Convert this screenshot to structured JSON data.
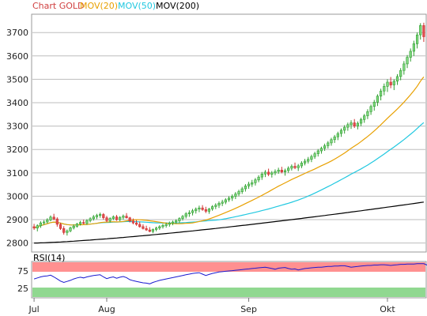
{
  "chart_data": {
    "type": "candlestick",
    "legend": [
      {
        "label": "Chart GOLD",
        "color": "#d04040"
      },
      {
        "label": "MOV(20)",
        "color": "#e8a000"
      },
      {
        "label": "MOV(50)",
        "color": "#20c8e0"
      },
      {
        "label": "MOV(200)",
        "color": "#000000"
      }
    ],
    "yticks": [
      2800,
      2900,
      3000,
      3100,
      3200,
      3300,
      3400,
      3500,
      3600,
      3700
    ],
    "ylim": [
      2765,
      3775
    ],
    "grid": true,
    "month_labels": [
      {
        "label": "Jul",
        "index": 0
      },
      {
        "label": "Aug",
        "index": 22
      },
      {
        "label": "Sep",
        "index": 65
      },
      {
        "label": "Okt",
        "index": 107
      }
    ],
    "candles_ohlc": [
      [
        2870,
        2882,
        2856,
        2864
      ],
      [
        2864,
        2880,
        2850,
        2874
      ],
      [
        2874,
        2893,
        2865,
        2886
      ],
      [
        2886,
        2898,
        2878,
        2890
      ],
      [
        2890,
        2906,
        2884,
        2899
      ],
      [
        2899,
        2918,
        2893,
        2911
      ],
      [
        2911,
        2925,
        2898,
        2903
      ],
      [
        2903,
        2910,
        2870,
        2880
      ],
      [
        2880,
        2886,
        2856,
        2862
      ],
      [
        2862,
        2872,
        2836,
        2845
      ],
      [
        2845,
        2858,
        2832,
        2852
      ],
      [
        2852,
        2870,
        2846,
        2865
      ],
      [
        2865,
        2880,
        2858,
        2872
      ],
      [
        2872,
        2886,
        2866,
        2882
      ],
      [
        2882,
        2895,
        2875,
        2888
      ],
      [
        2888,
        2900,
        2880,
        2885
      ],
      [
        2885,
        2902,
        2878,
        2896
      ],
      [
        2896,
        2910,
        2888,
        2904
      ],
      [
        2904,
        2920,
        2896,
        2912
      ],
      [
        2912,
        2925,
        2902,
        2918
      ],
      [
        2918,
        2930,
        2908,
        2922
      ],
      [
        2922,
        2928,
        2900,
        2908
      ],
      [
        2908,
        2916,
        2890,
        2896
      ],
      [
        2896,
        2910,
        2888,
        2905
      ],
      [
        2905,
        2918,
        2898,
        2912
      ],
      [
        2912,
        2920,
        2895,
        2900
      ],
      [
        2900,
        2915,
        2893,
        2910
      ],
      [
        2910,
        2922,
        2900,
        2915
      ],
      [
        2915,
        2928,
        2905,
        2908
      ],
      [
        2908,
        2912,
        2888,
        2894
      ],
      [
        2894,
        2905,
        2880,
        2886
      ],
      [
        2886,
        2898,
        2874,
        2880
      ],
      [
        2880,
        2892,
        2866,
        2870
      ],
      [
        2870,
        2880,
        2858,
        2862
      ],
      [
        2862,
        2874,
        2852,
        2856
      ],
      [
        2856,
        2868,
        2846,
        2850
      ],
      [
        2850,
        2862,
        2842,
        2858
      ],
      [
        2858,
        2870,
        2850,
        2864
      ],
      [
        2864,
        2876,
        2856,
        2870
      ],
      [
        2870,
        2882,
        2862,
        2875
      ],
      [
        2875,
        2888,
        2866,
        2880
      ],
      [
        2880,
        2892,
        2870,
        2885
      ],
      [
        2885,
        2896,
        2876,
        2890
      ],
      [
        2890,
        2902,
        2882,
        2895
      ],
      [
        2895,
        2910,
        2886,
        2905
      ],
      [
        2905,
        2920,
        2896,
        2914
      ],
      [
        2914,
        2932,
        2905,
        2925
      ],
      [
        2925,
        2940,
        2912,
        2930
      ],
      [
        2930,
        2946,
        2918,
        2938
      ],
      [
        2938,
        2952,
        2926,
        2945
      ],
      [
        2945,
        2960,
        2932,
        2950
      ],
      [
        2950,
        2962,
        2938,
        2943
      ],
      [
        2943,
        2955,
        2928,
        2936
      ],
      [
        2936,
        2950,
        2925,
        2946
      ],
      [
        2946,
        2962,
        2938,
        2956
      ],
      [
        2956,
        2970,
        2945,
        2962
      ],
      [
        2962,
        2978,
        2950,
        2970
      ],
      [
        2970,
        2985,
        2958,
        2975
      ],
      [
        2975,
        2992,
        2966,
        2985
      ],
      [
        2985,
        3000,
        2976,
        2992
      ],
      [
        2992,
        3008,
        2980,
        3000
      ],
      [
        3000,
        3018,
        2988,
        3010
      ],
      [
        3010,
        3028,
        3000,
        3020
      ],
      [
        3020,
        3040,
        3010,
        3032
      ],
      [
        3032,
        3052,
        3020,
        3044
      ],
      [
        3044,
        3062,
        3032,
        3052
      ],
      [
        3052,
        3070,
        3040,
        3058
      ],
      [
        3058,
        3078,
        3046,
        3070
      ],
      [
        3070,
        3090,
        3060,
        3082
      ],
      [
        3082,
        3104,
        3070,
        3095
      ],
      [
        3095,
        3112,
        3082,
        3103
      ],
      [
        3103,
        3118,
        3086,
        3094
      ],
      [
        3094,
        3108,
        3080,
        3100
      ],
      [
        3100,
        3115,
        3090,
        3106
      ],
      [
        3106,
        3122,
        3096,
        3112
      ],
      [
        3112,
        3126,
        3098,
        3104
      ],
      [
        3104,
        3118,
        3088,
        3110
      ],
      [
        3110,
        3128,
        3100,
        3120
      ],
      [
        3120,
        3136,
        3110,
        3128
      ],
      [
        3128,
        3144,
        3116,
        3122
      ],
      [
        3122,
        3138,
        3108,
        3130
      ],
      [
        3130,
        3150,
        3120,
        3142
      ],
      [
        3142,
        3160,
        3132,
        3150
      ],
      [
        3150,
        3168,
        3140,
        3158
      ],
      [
        3158,
        3178,
        3146,
        3170
      ],
      [
        3170,
        3190,
        3160,
        3182
      ],
      [
        3182,
        3202,
        3170,
        3194
      ],
      [
        3194,
        3212,
        3182,
        3205
      ],
      [
        3205,
        3225,
        3194,
        3216
      ],
      [
        3216,
        3236,
        3204,
        3228
      ],
      [
        3228,
        3250,
        3216,
        3242
      ],
      [
        3242,
        3262,
        3228,
        3254
      ],
      [
        3254,
        3276,
        3240,
        3268
      ],
      [
        3268,
        3290,
        3254,
        3282
      ],
      [
        3282,
        3304,
        3268,
        3295
      ],
      [
        3295,
        3315,
        3280,
        3306
      ],
      [
        3306,
        3325,
        3288,
        3314
      ],
      [
        3314,
        3330,
        3292,
        3300
      ],
      [
        3300,
        3320,
        3286,
        3312
      ],
      [
        3312,
        3336,
        3300,
        3328
      ],
      [
        3328,
        3352,
        3314,
        3344
      ],
      [
        3344,
        3372,
        3330,
        3362
      ],
      [
        3362,
        3392,
        3348,
        3384
      ],
      [
        3384,
        3412,
        3366,
        3402
      ],
      [
        3402,
        3436,
        3386,
        3428
      ],
      [
        3428,
        3460,
        3410,
        3450
      ],
      [
        3450,
        3482,
        3432,
        3470
      ],
      [
        3470,
        3500,
        3446,
        3488
      ],
      [
        3488,
        3510,
        3462,
        3476
      ],
      [
        3476,
        3500,
        3454,
        3492
      ],
      [
        3492,
        3522,
        3476,
        3512
      ],
      [
        3512,
        3548,
        3496,
        3538
      ],
      [
        3538,
        3578,
        3520,
        3566
      ],
      [
        3566,
        3604,
        3548,
        3594
      ],
      [
        3594,
        3632,
        3576,
        3620
      ],
      [
        3620,
        3665,
        3600,
        3652
      ],
      [
        3652,
        3700,
        3632,
        3690
      ],
      [
        3690,
        3740,
        3670,
        3730
      ],
      [
        3730,
        3742,
        3660,
        3682
      ]
    ],
    "rsi14": {
      "label": "RSI(14)",
      "levels": [
        25,
        75
      ],
      "ylim": [
        0,
        100
      ],
      "values": [
        52,
        55,
        58,
        60,
        61,
        63,
        58,
        52,
        46,
        42,
        45,
        48,
        52,
        55,
        57,
        55,
        58,
        60,
        62,
        63,
        64,
        58,
        53,
        56,
        58,
        54,
        57,
        59,
        56,
        50,
        47,
        45,
        43,
        41,
        40,
        38,
        42,
        45,
        48,
        50,
        52,
        54,
        56,
        58,
        60,
        62,
        64,
        66,
        68,
        69,
        70,
        66,
        62,
        65,
        68,
        70,
        72,
        73,
        74,
        75,
        76,
        77,
        78,
        79,
        80,
        81,
        82,
        83,
        84,
        85,
        86,
        84,
        82,
        80,
        83,
        84,
        85,
        82,
        80,
        81,
        78,
        80,
        82,
        83,
        84,
        85,
        86,
        86,
        87,
        88,
        88,
        89,
        89,
        90,
        90,
        88,
        86,
        87,
        88,
        89,
        90,
        91,
        91,
        92,
        92,
        93,
        93,
        92,
        91,
        92,
        93,
        94,
        94,
        95,
        95,
        95,
        96,
        96,
        96,
        92
      ]
    }
  }
}
